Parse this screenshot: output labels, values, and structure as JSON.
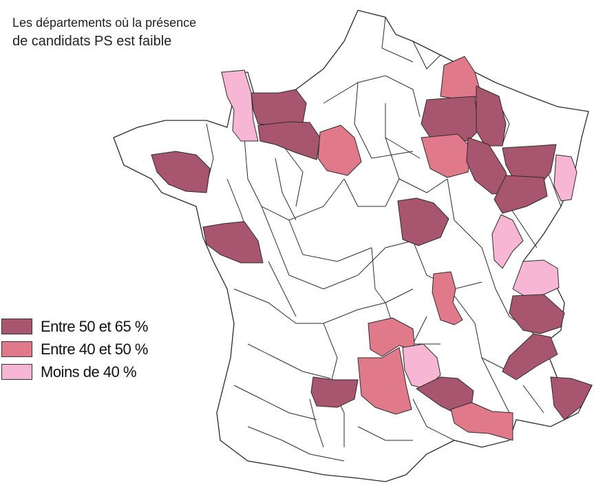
{
  "title": {
    "line1": "Les départements où la présence",
    "line2": "de candidats PS est faible"
  },
  "colors": {
    "high": "#a8566f",
    "mid": "#e07a8a",
    "low": "#f7b6d4",
    "none": "#ffffff"
  },
  "legend": [
    {
      "label": "Entre 50 et 65 %",
      "class": "high"
    },
    {
      "label": "Entre 40 et 50 %",
      "class": "mid"
    },
    {
      "label": "Moins de 40 %",
      "class": "low"
    }
  ],
  "departments": [
    {
      "name": "Manche",
      "class": "low"
    },
    {
      "name": "Calvados",
      "class": "high"
    },
    {
      "name": "Orne",
      "class": "high"
    },
    {
      "name": "Eure-et-Loir",
      "class": "mid"
    },
    {
      "name": "Morbihan",
      "class": "high"
    },
    {
      "name": "Vendée",
      "class": "high"
    },
    {
      "name": "Ardennes",
      "class": "mid"
    },
    {
      "name": "Marne",
      "class": "high"
    },
    {
      "name": "Meuse",
      "class": "high"
    },
    {
      "name": "Aube",
      "class": "mid"
    },
    {
      "name": "Haute-Marne",
      "class": "high"
    },
    {
      "name": "Vosges",
      "class": "high"
    },
    {
      "name": "Haute-Saône",
      "class": "high"
    },
    {
      "name": "Haut-Rhin",
      "class": "low"
    },
    {
      "name": "Nièvre",
      "class": "high"
    },
    {
      "name": "Jura",
      "class": "low"
    },
    {
      "name": "Haute-Savoie",
      "class": "low"
    },
    {
      "name": "Savoie",
      "class": "high"
    },
    {
      "name": "Loire",
      "class": "mid"
    },
    {
      "name": "Hautes-Alpes",
      "class": "high"
    },
    {
      "name": "Corrèze",
      "class": "mid"
    },
    {
      "name": "Cantal",
      "class": "low"
    },
    {
      "name": "Lot",
      "class": "high"
    },
    {
      "name": "Aveyron",
      "class": "mid"
    },
    {
      "name": "Ardèche",
      "class": "high"
    },
    {
      "name": "Var",
      "class": "mid"
    },
    {
      "name": "Alpes-Maritimes",
      "class": "high"
    }
  ]
}
